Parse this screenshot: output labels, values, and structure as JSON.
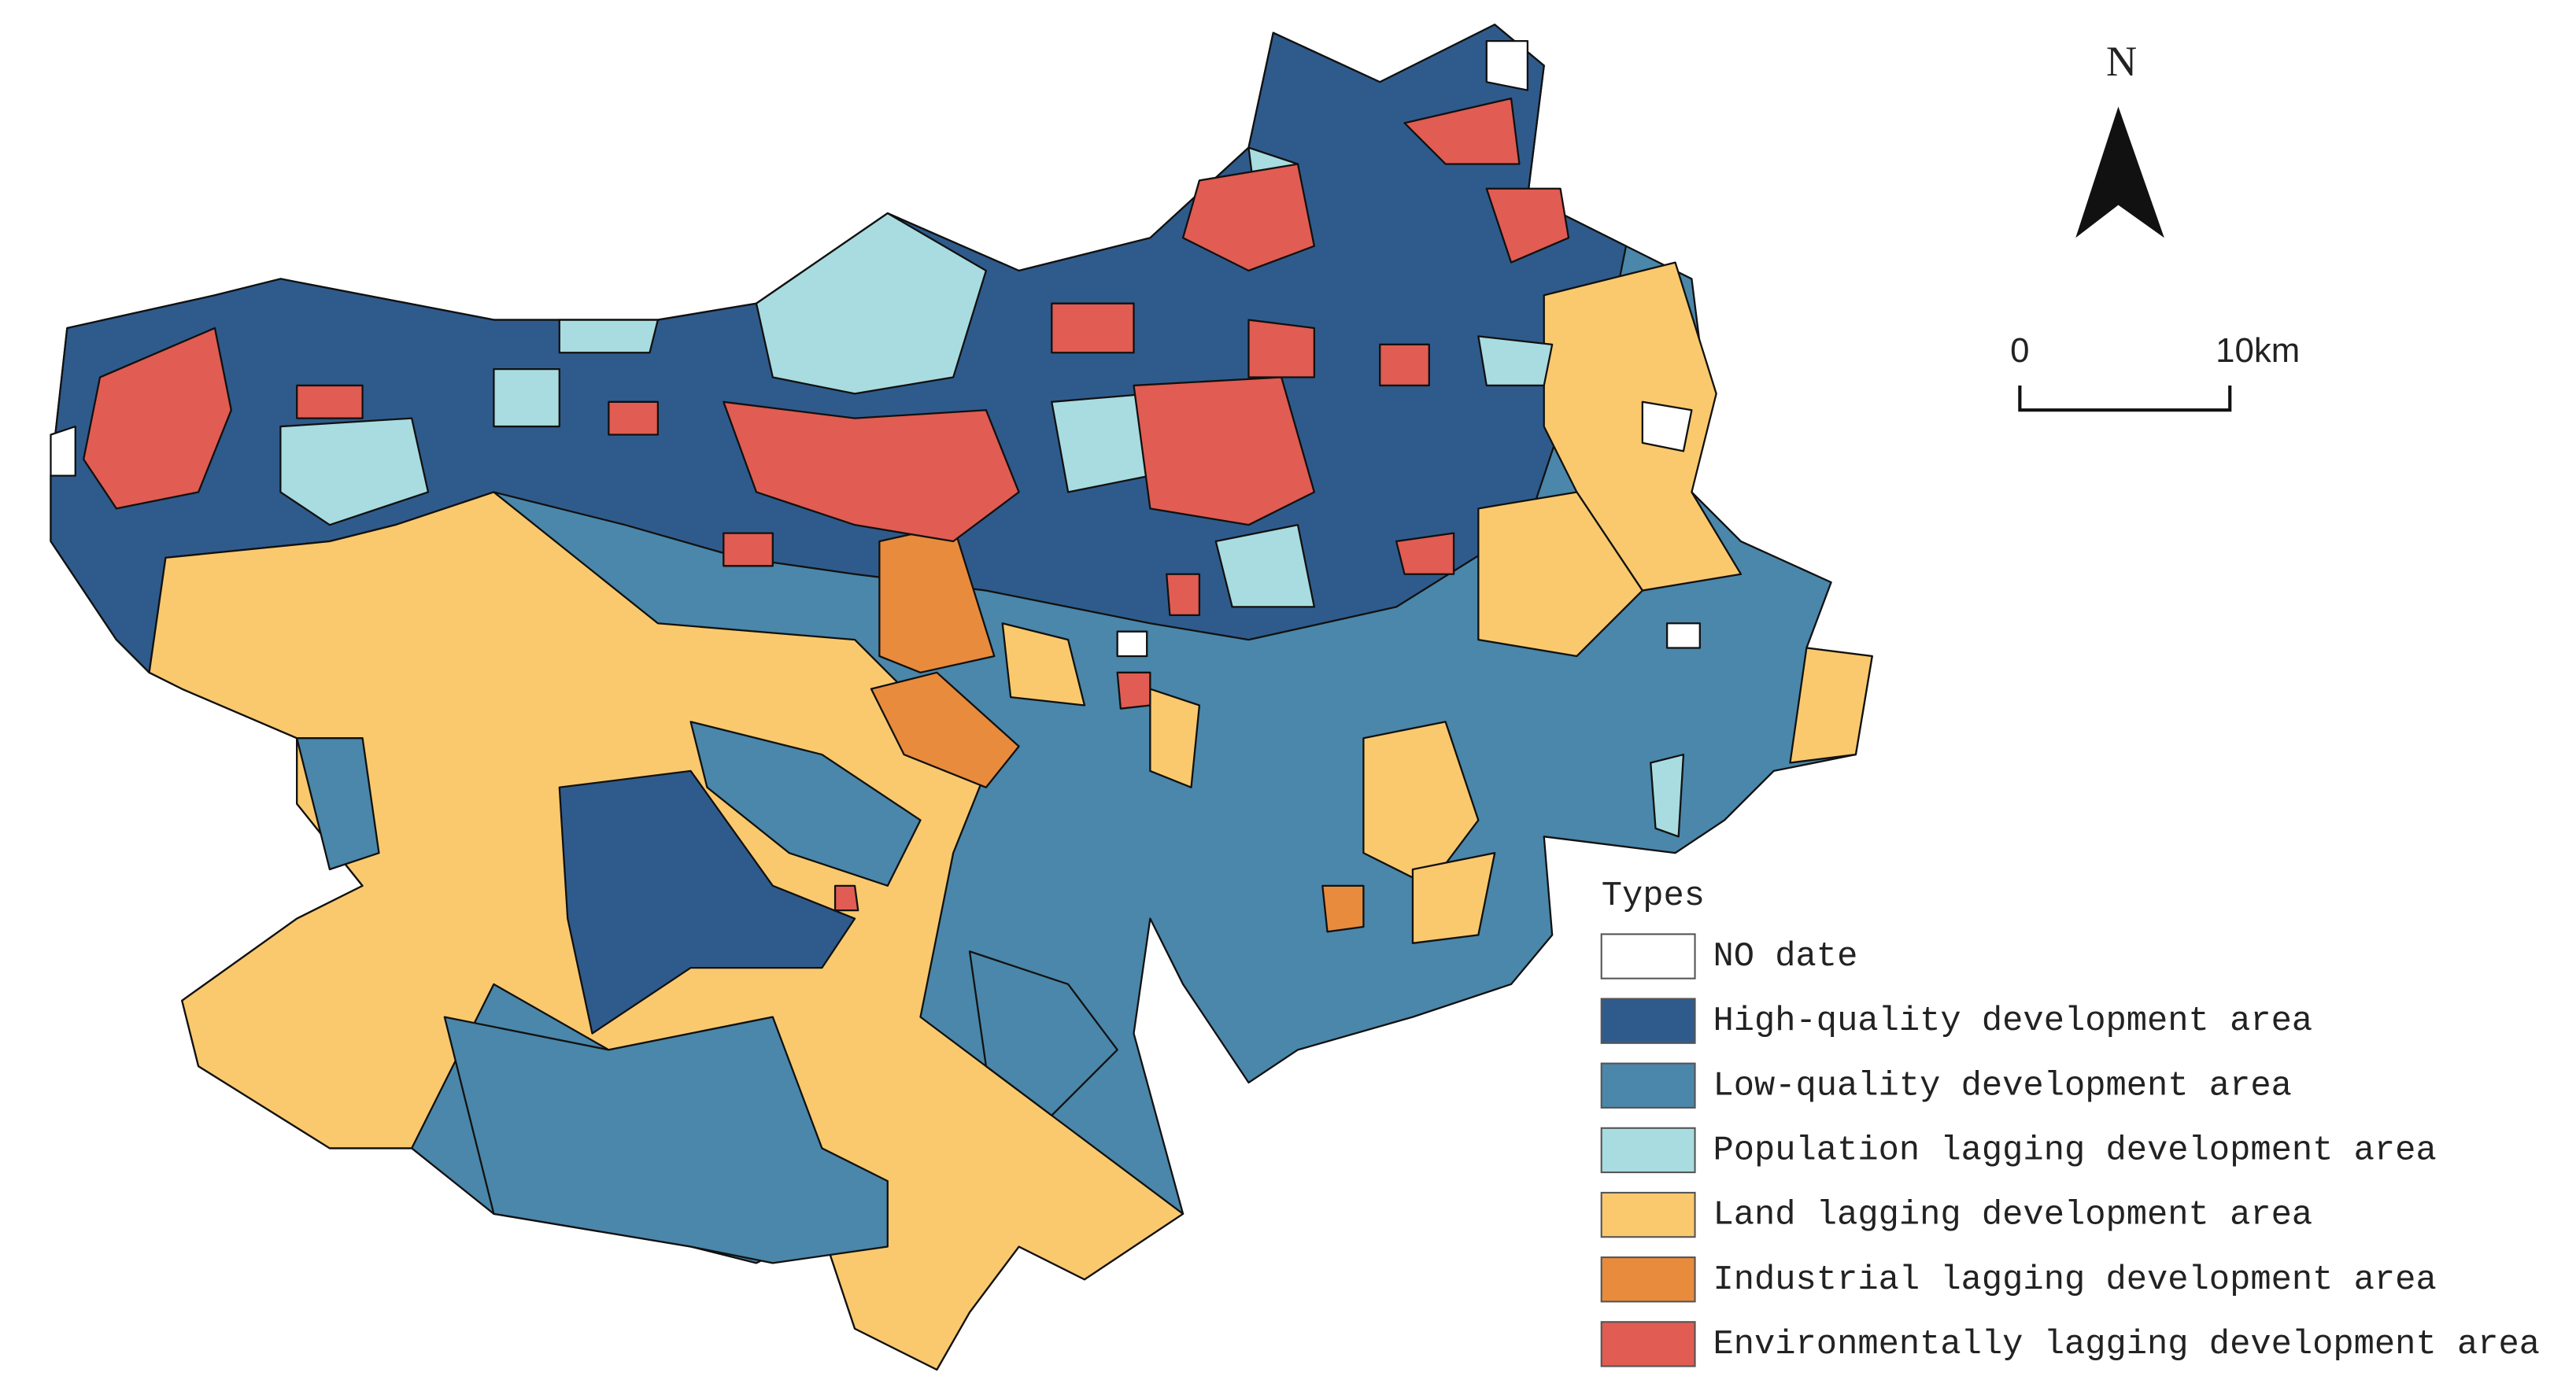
{
  "north_arrow": {
    "label": "N"
  },
  "scale_bar": {
    "labels": [
      "0",
      "10km"
    ]
  },
  "legend": {
    "title": "Types",
    "items": [
      {
        "label": "NO date",
        "color": "#ffffff"
      },
      {
        "label": "High-quality development area",
        "color": "#2f5b8c"
      },
      {
        "label": "Low-quality development area",
        "color": "#4a87aa"
      },
      {
        "label": "Population lagging development area",
        "color": "#a8dce0"
      },
      {
        "label": "Land lagging development area",
        "color": "#fac96e"
      },
      {
        "label": "Industrial lagging development area",
        "color": "#e98b3c"
      },
      {
        "label": "Environmentally lagging development area",
        "color": "#e15c52"
      }
    ]
  }
}
